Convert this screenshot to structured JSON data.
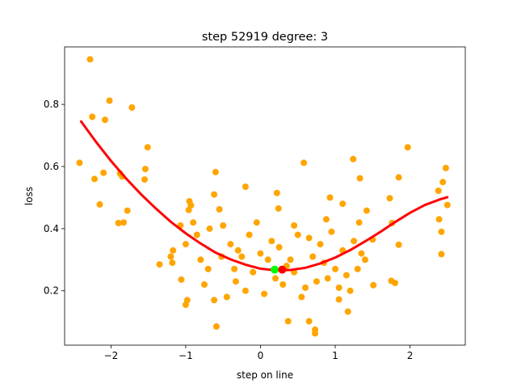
{
  "chart_data": {
    "type": "scatter",
    "title": "step 52919   degree: 3",
    "xlabel": "step on line",
    "ylabel": "loss",
    "xlim": [
      -2.62,
      2.74
    ],
    "ylim": [
      0.025,
      0.985
    ],
    "xticks": [
      -2,
      -1,
      0,
      1,
      2
    ],
    "yticks": [
      0.2,
      0.4,
      0.6,
      0.8
    ],
    "xtick_labels": [
      "−2",
      "−1",
      "0",
      "1",
      "2"
    ],
    "ytick_labels": [
      "0.2",
      "0.4",
      "0.6",
      "0.8"
    ],
    "grid": false,
    "legend": "none",
    "colors": {
      "points": "#ffa500",
      "fit": "#ff0000",
      "green_marker": "#00ff00",
      "red_marker": "#ff0000"
    },
    "fit_curve": {
      "degree": 3,
      "x": [
        -2.4,
        -2.2,
        -2.0,
        -1.8,
        -1.6,
        -1.4,
        -1.2,
        -1.0,
        -0.8,
        -0.6,
        -0.4,
        -0.2,
        0.0,
        0.2,
        0.4,
        0.6,
        0.8,
        1.0,
        1.2,
        1.4,
        1.6,
        1.8,
        2.0,
        2.2,
        2.4,
        2.5
      ],
      "y": [
        0.745,
        0.679,
        0.618,
        0.562,
        0.511,
        0.465,
        0.422,
        0.385,
        0.352,
        0.323,
        0.301,
        0.284,
        0.271,
        0.266,
        0.267,
        0.274,
        0.288,
        0.307,
        0.331,
        0.359,
        0.389,
        0.421,
        0.451,
        0.476,
        0.494,
        0.501
      ]
    },
    "markers": [
      {
        "name": "green",
        "x": 0.19,
        "y": 0.268
      },
      {
        "name": "red",
        "x": 0.29,
        "y": 0.268
      }
    ],
    "points": [
      [
        -2.28,
        0.945
      ],
      [
        -2.25,
        0.76
      ],
      [
        -2.08,
        0.75
      ],
      [
        -2.02,
        0.812
      ],
      [
        -1.72,
        0.79
      ],
      [
        -2.42,
        0.612
      ],
      [
        -2.1,
        0.58
      ],
      [
        -1.88,
        0.578
      ],
      [
        -1.85,
        0.568
      ],
      [
        -2.22,
        0.56
      ],
      [
        -1.54,
        0.592
      ],
      [
        -1.51,
        0.662
      ],
      [
        -1.55,
        0.558
      ],
      [
        -2.15,
        0.478
      ],
      [
        -1.78,
        0.458
      ],
      [
        -1.83,
        0.42
      ],
      [
        -1.9,
        0.418
      ],
      [
        -1.35,
        0.285
      ],
      [
        -1.2,
        0.31
      ],
      [
        -1.18,
        0.29
      ],
      [
        -1.17,
        0.33
      ],
      [
        -1.07,
        0.41
      ],
      [
        -1.0,
        0.35
      ],
      [
        -0.95,
        0.488
      ],
      [
        -0.96,
        0.46
      ],
      [
        -0.93,
        0.475
      ],
      [
        -0.9,
        0.42
      ],
      [
        -1.06,
        0.236
      ],
      [
        -0.98,
        0.17
      ],
      [
        -1.0,
        0.155
      ],
      [
        -0.6,
        0.582
      ],
      [
        -0.62,
        0.51
      ],
      [
        -0.55,
        0.462
      ],
      [
        -0.2,
        0.535
      ],
      [
        0.22,
        0.515
      ],
      [
        0.24,
        0.465
      ],
      [
        0.58,
        0.612
      ],
      [
        1.24,
        0.624
      ],
      [
        1.33,
        0.562
      ],
      [
        0.93,
        0.5
      ],
      [
        1.1,
        0.48
      ],
      [
        1.42,
        0.458
      ],
      [
        1.85,
        0.565
      ],
      [
        1.97,
        0.662
      ],
      [
        2.48,
        0.595
      ],
      [
        2.44,
        0.55
      ],
      [
        2.38,
        0.522
      ],
      [
        2.39,
        0.43
      ],
      [
        2.42,
        0.39
      ],
      [
        2.42,
        0.318
      ],
      [
        2.5,
        0.476
      ],
      [
        1.73,
        0.498
      ],
      [
        1.76,
        0.418
      ],
      [
        1.85,
        0.348
      ],
      [
        1.75,
        0.232
      ],
      [
        1.8,
        0.225
      ],
      [
        1.51,
        0.218
      ],
      [
        1.17,
        0.133
      ],
      [
        1.05,
        0.172
      ],
      [
        0.73,
        0.075
      ],
      [
        0.73,
        0.063
      ],
      [
        0.65,
        0.102
      ],
      [
        0.37,
        0.102
      ],
      [
        -0.59,
        0.085
      ],
      [
        1.5,
        0.365
      ],
      [
        -0.75,
        0.22
      ],
      [
        -0.68,
        0.4
      ],
      [
        -0.45,
        0.18
      ],
      [
        -0.3,
        0.33
      ],
      [
        -0.1,
        0.26
      ],
      [
        0.1,
        0.3
      ],
      [
        0.3,
        0.22
      ],
      [
        0.5,
        0.38
      ],
      [
        0.7,
        0.31
      ],
      [
        0.9,
        0.24
      ],
      [
        1.1,
        0.33
      ],
      [
        1.3,
        0.27
      ],
      [
        -0.8,
        0.3
      ],
      [
        -0.52,
        0.31
      ],
      [
        -0.33,
        0.23
      ],
      [
        -0.15,
        0.38
      ],
      [
        0.05,
        0.19
      ],
      [
        0.25,
        0.34
      ],
      [
        0.45,
        0.26
      ],
      [
        0.65,
        0.37
      ],
      [
        0.85,
        0.29
      ],
      [
        1.05,
        0.21
      ],
      [
        1.25,
        0.36
      ],
      [
        1.4,
        0.3
      ],
      [
        -0.7,
        0.27
      ],
      [
        -0.4,
        0.35
      ],
      [
        -0.2,
        0.2
      ],
      [
        0.0,
        0.32
      ],
      [
        0.2,
        0.24
      ],
      [
        0.4,
        0.3
      ],
      [
        0.6,
        0.21
      ],
      [
        0.8,
        0.35
      ],
      [
        1.0,
        0.27
      ],
      [
        1.2,
        0.2
      ],
      [
        -0.62,
        0.17
      ],
      [
        -0.35,
        0.27
      ],
      [
        0.15,
        0.36
      ],
      [
        0.55,
        0.18
      ],
      [
        0.95,
        0.39
      ],
      [
        1.15,
        0.25
      ],
      [
        -0.85,
        0.38
      ],
      [
        -0.25,
        0.31
      ],
      [
        0.35,
        0.28
      ],
      [
        0.75,
        0.23
      ],
      [
        1.35,
        0.32
      ],
      [
        -0.5,
        0.41
      ],
      [
        -0.05,
        0.42
      ],
      [
        0.45,
        0.41
      ],
      [
        0.88,
        0.43
      ],
      [
        1.32,
        0.42
      ]
    ]
  }
}
